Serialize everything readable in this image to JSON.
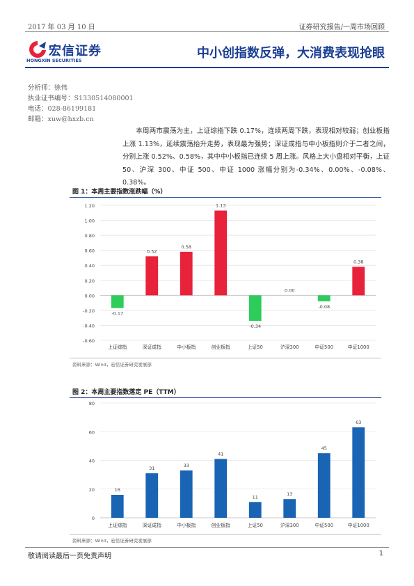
{
  "header": {
    "date": "2017 年 03 月 10 日",
    "report_type": "证券研究报告/一周市场回顾",
    "logo_cn": "宏信证券",
    "logo_en": "HONGXIN SECURITIES",
    "headline": "中小创指数反弹，大消费表现抢眼"
  },
  "contact": {
    "analyst": "分析师：徐伟",
    "license": "执业证书编号：S1330514080001",
    "phone": "电话：028-86199181",
    "email": "邮箱：xuw@hxzb.cn"
  },
  "summary": "本周两市震荡为主，上证综指下跌 0.17%，连续两周下跌，表现相对较弱；创业板指上涨 1.13%，延续震荡抬升走势，表现最为强势；深证成指与中小板指则介于二者之间，分别上涨 0.52%、0.58%，其中中小板指已连续 5 周上涨。风格上大小盘相对平衡，上证 50、沪深 300、中证 500、中证 1000 涨幅分别为-0.34%、0.00%、-0.08%、0.38%。",
  "figures": {
    "fig1_title": "图 1：本周主要指数涨跌幅（%）",
    "fig1_source": "资料来源：Wind，宏信证券研究发展部",
    "fig2_title": "图 2：本周主要指数落定 PE（TTM）",
    "fig2_source": "资料来源：Wind，宏信证券研究发展部"
  },
  "chart_data": [
    {
      "type": "bar",
      "categories": [
        "上证综指",
        "深证成指",
        "中小板指",
        "创业板指",
        "上证50",
        "沪深300",
        "中证500",
        "中证1000"
      ],
      "values": [
        -0.17,
        0.52,
        0.58,
        1.13,
        -0.34,
        0.0,
        -0.08,
        0.38
      ],
      "value_labels": [
        "-0.17",
        "0.52",
        "0.58",
        "1.13",
        "-0.34",
        "0.00",
        "-0.08",
        "0.38"
      ],
      "ylim": [
        -0.6,
        1.2
      ],
      "yticks": [
        "1.20",
        "1.00",
        "0.80",
        "0.60",
        "0.40",
        "0.20",
        "0.00",
        "-0.20",
        "-0.40",
        "-0.60"
      ],
      "grid": true,
      "colors": {
        "positive": "#e8223a",
        "negative": "#2ecc5a"
      }
    },
    {
      "type": "bar",
      "categories": [
        "上证综指",
        "深证成指",
        "中小板指",
        "创业板指",
        "上证50",
        "沪深300",
        "中证500",
        "中证1000"
      ],
      "values": [
        16,
        31,
        33,
        41,
        11,
        13,
        45,
        63
      ],
      "value_labels": [
        "16",
        "31",
        "33",
        "41",
        "11",
        "13",
        "45",
        "63"
      ],
      "ylim": [
        0,
        80
      ],
      "yticks": [
        "80",
        "60",
        "40",
        "20",
        "0"
      ],
      "grid": true,
      "colors": {
        "bar": "#1a64b4"
      }
    }
  ],
  "footer": {
    "disclaimer": "敬请阅读最后一页免责声明",
    "page": "1"
  }
}
